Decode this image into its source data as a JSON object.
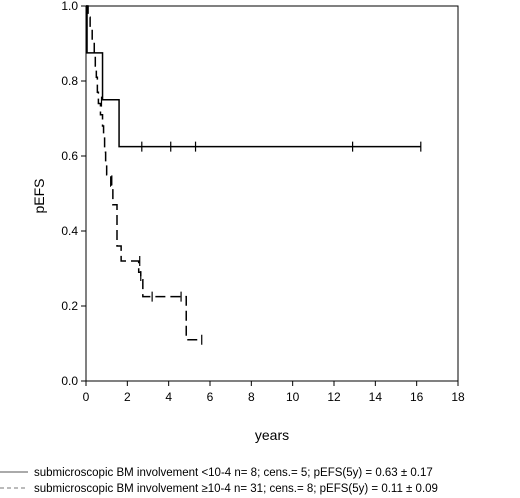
{
  "chart_data": {
    "type": "line",
    "title": "",
    "xlabel": "years",
    "ylabel": "pEFS",
    "xlim": [
      0,
      18
    ],
    "ylim": [
      0,
      1
    ],
    "x_ticks": [
      "0",
      "2",
      "4",
      "6",
      "8",
      "10",
      "12",
      "14",
      "16",
      "18"
    ],
    "y_ticks": [
      "0.0",
      "0.2",
      "0.4",
      "0.6",
      "0.8",
      "1.0"
    ],
    "grid": false,
    "legend_position": "bottom",
    "series": [
      {
        "name": "submicroscopic BM involvement <10-4  n=  8;  cens.= 5;  pEFS(5y) = 0.63 ± 0.17",
        "style": "solid",
        "color": "#555555",
        "steps": [
          [
            0,
            1.0
          ],
          [
            0.05,
            0.875
          ],
          [
            0.8,
            0.75
          ],
          [
            1.6,
            0.625
          ],
          [
            16.2,
            0.625
          ]
        ],
        "censored": [
          [
            2.7,
            0.625
          ],
          [
            4.1,
            0.625
          ],
          [
            5.3,
            0.625
          ],
          [
            12.9,
            0.625
          ],
          [
            16.2,
            0.625
          ]
        ]
      },
      {
        "name": "submicroscopic BM involvement ≥10-4  n= 31; cens.= 8;  pEFS(5y) = 0.11 ± 0.09",
        "style": "dashed",
        "color": "#777777",
        "steps": [
          [
            0,
            1.0
          ],
          [
            0.1,
            0.97
          ],
          [
            0.2,
            0.94
          ],
          [
            0.3,
            0.9
          ],
          [
            0.4,
            0.87
          ],
          [
            0.45,
            0.84
          ],
          [
            0.5,
            0.81
          ],
          [
            0.55,
            0.77
          ],
          [
            0.6,
            0.74
          ],
          [
            0.7,
            0.71
          ],
          [
            0.8,
            0.68
          ],
          [
            0.85,
            0.65
          ],
          [
            0.9,
            0.61
          ],
          [
            0.95,
            0.58
          ],
          [
            1.0,
            0.55
          ],
          [
            1.2,
            0.52
          ],
          [
            1.3,
            0.47
          ],
          [
            1.5,
            0.36
          ],
          [
            1.7,
            0.32
          ],
          [
            2.55,
            0.29
          ],
          [
            2.65,
            0.27
          ],
          [
            2.75,
            0.225
          ],
          [
            4.7,
            0.225
          ],
          [
            4.85,
            0.11
          ],
          [
            5.6,
            0.11
          ]
        ],
        "censored": [
          [
            0.75,
            0.745
          ],
          [
            1.25,
            0.535
          ],
          [
            2.6,
            0.32
          ],
          [
            2.65,
            0.28
          ],
          [
            3.2,
            0.225
          ],
          [
            4.6,
            0.225
          ],
          [
            5.6,
            0.11
          ]
        ]
      }
    ]
  }
}
